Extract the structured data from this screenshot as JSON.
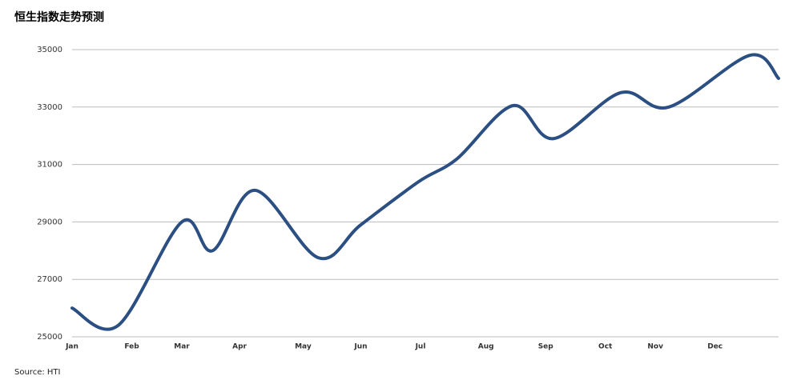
{
  "chart_data": {
    "type": "line",
    "title": "恒生指数走势预测",
    "source": "Source: HTI",
    "x": [
      0,
      24,
      57,
      73,
      95,
      128,
      150,
      180,
      200,
      229,
      250,
      285,
      310,
      352,
      367
    ],
    "series": [
      {
        "name": "恒生指数",
        "color": "#2b4f82",
        "values": [
          26000,
          25400,
          29000,
          28000,
          30100,
          27750,
          28900,
          30400,
          31200,
          33050,
          31900,
          33500,
          33000,
          34800,
          34000
        ]
      }
    ],
    "xlim": [
      0,
      367
    ],
    "xticks": [
      {
        "value": 0,
        "label": "Jan"
      },
      {
        "value": 31,
        "label": "Feb"
      },
      {
        "value": 57,
        "label": "Mar"
      },
      {
        "value": 87,
        "label": "Apr"
      },
      {
        "value": 120,
        "label": "May"
      },
      {
        "value": 150,
        "label": "Jun"
      },
      {
        "value": 181,
        "label": "Jul"
      },
      {
        "value": 215,
        "label": "Aug"
      },
      {
        "value": 246,
        "label": "Sep"
      },
      {
        "value": 277,
        "label": "Oct"
      },
      {
        "value": 303,
        "label": "Nov"
      },
      {
        "value": 334,
        "label": "Dec"
      }
    ],
    "ylim": [
      25000,
      35000
    ],
    "yticks": [
      25000,
      27000,
      29000,
      31000,
      33000,
      35000
    ],
    "grid": true
  }
}
